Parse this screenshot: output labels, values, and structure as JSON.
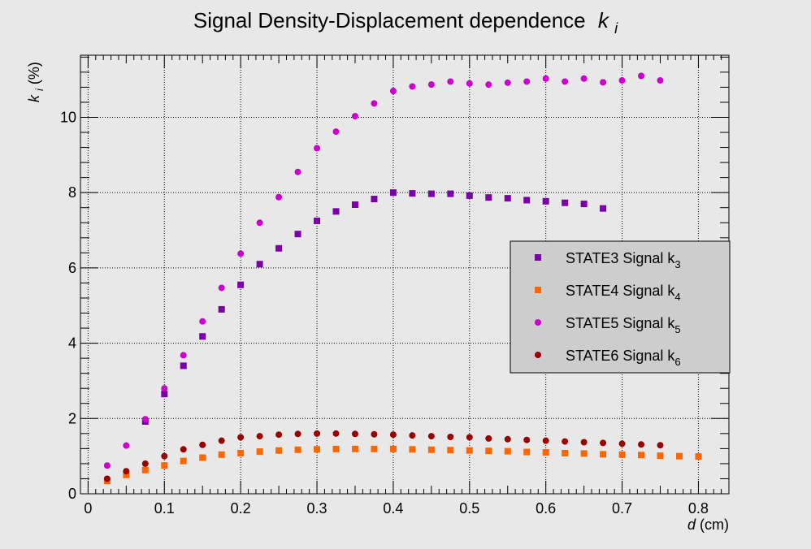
{
  "chart_data": {
    "type": "scatter",
    "title": "Signal Density-Displacement dependence",
    "title_symbol": "k",
    "title_subscript": "i",
    "xlabel_symbol": "d",
    "xlabel_unit": " (cm)",
    "ylabel_symbol": "k",
    "ylabel_subscript": "i",
    "ylabel_unit": " (%)",
    "xlim": [
      -0.01,
      0.84
    ],
    "ylim": [
      0,
      11.65
    ],
    "x_ticks": [
      0,
      0.1,
      0.2,
      0.3,
      0.4,
      0.5,
      0.6,
      0.7,
      0.8
    ],
    "x_tick_labels": [
      "0",
      "0.1",
      "0.2",
      "0.3",
      "0.4",
      "0.5",
      "0.6",
      "0.7",
      "0.8"
    ],
    "y_ticks": [
      0,
      2,
      4,
      6,
      8,
      10
    ],
    "y_tick_labels": [
      "0",
      "2",
      "4",
      "6",
      "8",
      "10"
    ],
    "grid": true,
    "legend_position": "right-middle",
    "series": [
      {
        "name": "STATE3 Signal k",
        "subscript": "3",
        "color": "#7a00a8",
        "marker": "square",
        "x": [
          0.075,
          0.1,
          0.125,
          0.15,
          0.175,
          0.2,
          0.225,
          0.25,
          0.275,
          0.3,
          0.325,
          0.35,
          0.375,
          0.4,
          0.425,
          0.45,
          0.475,
          0.5,
          0.525,
          0.55,
          0.575,
          0.6,
          0.625,
          0.65,
          0.675
        ],
        "y": [
          1.92,
          2.65,
          3.4,
          4.18,
          4.9,
          5.55,
          6.1,
          6.52,
          6.9,
          7.25,
          7.5,
          7.68,
          7.83,
          8.0,
          7.98,
          7.97,
          7.97,
          7.92,
          7.87,
          7.85,
          7.8,
          7.77,
          7.73,
          7.7,
          7.58
        ]
      },
      {
        "name": "STATE4 Signal k",
        "subscript": "4",
        "color": "#ff6600",
        "marker": "square",
        "x": [
          0.025,
          0.05,
          0.075,
          0.1,
          0.125,
          0.15,
          0.175,
          0.2,
          0.225,
          0.25,
          0.275,
          0.3,
          0.325,
          0.35,
          0.375,
          0.4,
          0.425,
          0.45,
          0.475,
          0.5,
          0.525,
          0.55,
          0.575,
          0.6,
          0.625,
          0.65,
          0.675,
          0.7,
          0.725,
          0.75,
          0.775,
          0.8
        ],
        "y": [
          0.34,
          0.5,
          0.63,
          0.75,
          0.87,
          0.96,
          1.04,
          1.08,
          1.12,
          1.15,
          1.17,
          1.18,
          1.19,
          1.19,
          1.19,
          1.19,
          1.18,
          1.17,
          1.16,
          1.15,
          1.14,
          1.13,
          1.11,
          1.1,
          1.08,
          1.07,
          1.05,
          1.04,
          1.03,
          1.01,
          1.0,
          0.99
        ]
      },
      {
        "name": "STATE5 Signal k",
        "subscript": "5",
        "color": "#cc00cc",
        "marker": "circle",
        "x": [
          0.025,
          0.05,
          0.075,
          0.1,
          0.125,
          0.15,
          0.175,
          0.2,
          0.225,
          0.25,
          0.275,
          0.3,
          0.325,
          0.35,
          0.375,
          0.4,
          0.425,
          0.45,
          0.475,
          0.5,
          0.525,
          0.55,
          0.575,
          0.6,
          0.625,
          0.65,
          0.675,
          0.7,
          0.725,
          0.75
        ],
        "y": [
          0.75,
          1.28,
          1.98,
          2.8,
          3.68,
          4.58,
          5.47,
          6.38,
          7.2,
          7.88,
          8.55,
          9.18,
          9.62,
          10.03,
          10.37,
          10.7,
          10.82,
          10.87,
          10.95,
          10.9,
          10.87,
          10.92,
          10.95,
          11.03,
          10.95,
          11.03,
          10.93,
          10.98,
          11.1,
          10.98
        ]
      },
      {
        "name": "STATE6 Signal k",
        "subscript": "6",
        "color": "#990000",
        "marker": "circle",
        "x": [
          0.025,
          0.05,
          0.075,
          0.1,
          0.125,
          0.15,
          0.175,
          0.2,
          0.225,
          0.25,
          0.275,
          0.3,
          0.325,
          0.35,
          0.375,
          0.4,
          0.425,
          0.45,
          0.475,
          0.5,
          0.525,
          0.55,
          0.575,
          0.6,
          0.625,
          0.65,
          0.675,
          0.7,
          0.725,
          0.75
        ],
        "y": [
          0.4,
          0.6,
          0.8,
          1.0,
          1.18,
          1.3,
          1.41,
          1.5,
          1.53,
          1.57,
          1.59,
          1.6,
          1.6,
          1.59,
          1.58,
          1.57,
          1.55,
          1.53,
          1.51,
          1.5,
          1.47,
          1.45,
          1.43,
          1.41,
          1.39,
          1.37,
          1.35,
          1.33,
          1.31,
          1.29
        ]
      }
    ]
  }
}
